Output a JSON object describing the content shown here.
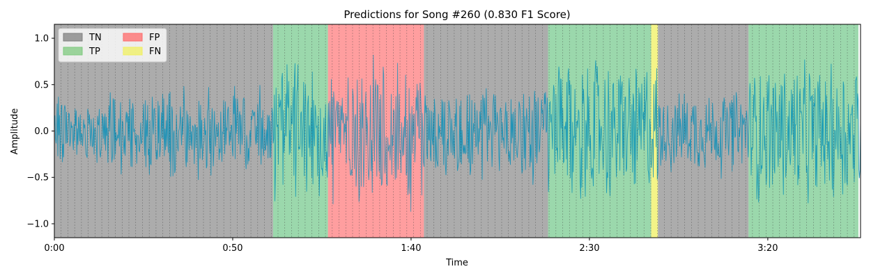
{
  "chart_data": {
    "type": "area",
    "title": "Predictions for Song #260 (0.830 F1 Score)",
    "xlabel": "Time",
    "ylabel": "Amplitude",
    "xlim_seconds": [
      0,
      226
    ],
    "ylim": [
      -1.15,
      1.15
    ],
    "x_ticks": [
      {
        "seconds": 0,
        "label": "0:00"
      },
      {
        "seconds": 50,
        "label": "0:50"
      },
      {
        "seconds": 100,
        "label": "1:40"
      },
      {
        "seconds": 150,
        "label": "2:30"
      },
      {
        "seconds": 200,
        "label": "3:20"
      }
    ],
    "y_ticks": [
      {
        "value": 1.0,
        "label": "1.0"
      },
      {
        "value": 0.5,
        "label": "0.5"
      },
      {
        "value": 0.0,
        "label": "0.0"
      },
      {
        "value": -0.5,
        "label": "−0.5"
      },
      {
        "value": -1.0,
        "label": "−1.0"
      }
    ],
    "legend": {
      "placement": "top-left",
      "entries": [
        {
          "key": "TN",
          "label": "TN",
          "color": "#808080"
        },
        {
          "key": "TP",
          "label": "TP",
          "color": "#7fc97f"
        },
        {
          "key": "FP",
          "label": "FP",
          "color": "#ff6b6b"
        },
        {
          "key": "FN",
          "label": "FN",
          "color": "#f0f060"
        }
      ]
    },
    "segments": [
      {
        "start": 0.0,
        "end": 61.3,
        "class": "TN"
      },
      {
        "start": 61.3,
        "end": 76.7,
        "class": "TP"
      },
      {
        "start": 76.7,
        "end": 103.6,
        "class": "FP"
      },
      {
        "start": 103.6,
        "end": 138.4,
        "class": "TN"
      },
      {
        "start": 138.4,
        "end": 167.3,
        "class": "TP"
      },
      {
        "start": 167.3,
        "end": 169.2,
        "class": "FN"
      },
      {
        "start": 169.2,
        "end": 194.6,
        "class": "TN"
      },
      {
        "start": 194.6,
        "end": 225.4,
        "class": "TP"
      }
    ],
    "beat_interval_seconds": 1.9,
    "waveform_envelope": [
      {
        "start": 0,
        "end": 15,
        "amp": 0.42
      },
      {
        "start": 15,
        "end": 30,
        "amp": 0.62
      },
      {
        "start": 30,
        "end": 45,
        "amp": 0.55
      },
      {
        "start": 45,
        "end": 61.3,
        "amp": 0.52
      },
      {
        "start": 61.3,
        "end": 76.7,
        "amp": 0.92
      },
      {
        "start": 76.7,
        "end": 103.6,
        "amp": 0.98
      },
      {
        "start": 103.6,
        "end": 138.4,
        "amp": 0.62
      },
      {
        "start": 138.4,
        "end": 169.2,
        "amp": 0.92
      },
      {
        "start": 169.2,
        "end": 194.6,
        "amp": 0.55
      },
      {
        "start": 194.6,
        "end": 226,
        "amp": 0.9
      }
    ],
    "grid": false
  }
}
